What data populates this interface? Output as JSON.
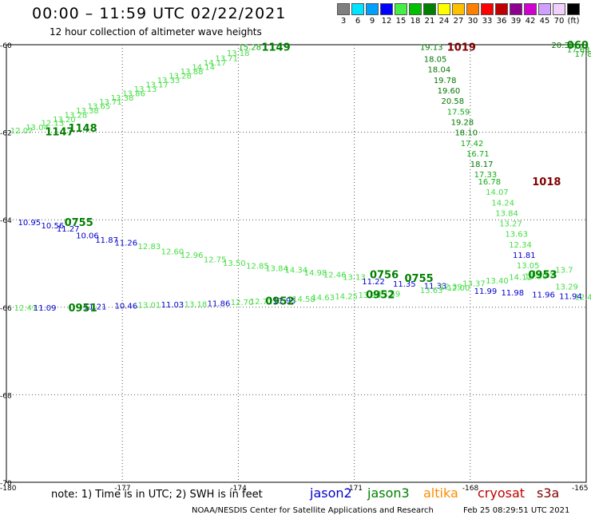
{
  "header": {
    "title": "00:00 – 11:59 UTC 02/22/2021",
    "subtitle": "12 hour collection of altimeter wave heights"
  },
  "legend": {
    "swatches": [
      {
        "color": "#7f7f7f",
        "label": "3"
      },
      {
        "color": "#00e5ff",
        "label": "6"
      },
      {
        "color": "#00a0ff",
        "label": "9"
      },
      {
        "color": "#0000ff",
        "label": "12"
      },
      {
        "color": "#44ee44",
        "label": "15"
      },
      {
        "color": "#00c000",
        "label": "18"
      },
      {
        "color": "#008000",
        "label": "21"
      },
      {
        "color": "#ffff00",
        "label": "24"
      },
      {
        "color": "#ffc000",
        "label": "27"
      },
      {
        "color": "#ff8000",
        "label": "30"
      },
      {
        "color": "#ff0000",
        "label": "33"
      },
      {
        "color": "#c00000",
        "label": "36"
      },
      {
        "color": "#900090",
        "label": "39"
      },
      {
        "color": "#d000d0",
        "label": "42"
      },
      {
        "color": "#d0a0ff",
        "label": "45"
      },
      {
        "color": "#f0d0ff",
        "label": "70"
      },
      {
        "color": "#000000",
        "label": "(ft)"
      }
    ]
  },
  "axes": {
    "lat_labels": [
      "-60",
      "-62",
      "-64",
      "-66",
      "-68",
      "-70"
    ],
    "lon_labels": [
      "-180",
      "-177",
      "-174",
      "-171",
      "-168",
      "-165"
    ],
    "lat_range": [
      -70,
      -60
    ],
    "lon_range": [
      -180,
      -165
    ]
  },
  "tracks": {
    "track_1149": [
      {
        "lat": -61.95,
        "lon": -179.9,
        "v": "12.07"
      },
      {
        "lat": -61.88,
        "lon": -179.5,
        "v": "13.04"
      },
      {
        "lat": -61.78,
        "lon": -179.1,
        "v": "12.13"
      },
      {
        "lat": -61.7,
        "lon": -178.8,
        "v": "13.20"
      },
      {
        "lat": -61.6,
        "lon": -178.5,
        "v": "13.28"
      },
      {
        "lat": -61.5,
        "lon": -178.2,
        "v": "13.38"
      },
      {
        "lat": -61.4,
        "lon": -177.9,
        "v": "13.65"
      },
      {
        "lat": -61.3,
        "lon": -177.6,
        "v": "13.71"
      },
      {
        "lat": -61.2,
        "lon": -177.3,
        "v": "13.38"
      },
      {
        "lat": -61.1,
        "lon": -177.0,
        "v": "13.86"
      },
      {
        "lat": -61.0,
        "lon": -176.7,
        "v": "13.13"
      },
      {
        "lat": -60.9,
        "lon": -176.4,
        "v": "13.17"
      },
      {
        "lat": -60.8,
        "lon": -176.1,
        "v": "13.33"
      },
      {
        "lat": -60.7,
        "lon": -175.8,
        "v": "13.28"
      },
      {
        "lat": -60.6,
        "lon": -175.5,
        "v": "13.88"
      },
      {
        "lat": -60.5,
        "lon": -175.2,
        "v": "14.14"
      },
      {
        "lat": -60.4,
        "lon": -174.9,
        "v": "14.17"
      },
      {
        "lat": -60.3,
        "lon": -174.6,
        "v": "13.71"
      },
      {
        "lat": -60.18,
        "lon": -174.3,
        "v": "13.18"
      },
      {
        "lat": -60.05,
        "lon": -174.0,
        "v": "15.28"
      }
    ],
    "track_1019": [
      {
        "lat": -60.05,
        "lon": -169.3,
        "v": "19.13"
      },
      {
        "lat": -60.32,
        "lon": -169.2,
        "v": "18.05"
      },
      {
        "lat": -60.56,
        "lon": -169.1,
        "v": "18.04"
      },
      {
        "lat": -60.8,
        "lon": -168.95,
        "v": "19.78"
      },
      {
        "lat": -61.04,
        "lon": -168.85,
        "v": "19.60"
      },
      {
        "lat": -61.28,
        "lon": -168.75,
        "v": "20.58"
      },
      {
        "lat": -61.52,
        "lon": -168.6,
        "v": "17.59"
      },
      {
        "lat": -61.76,
        "lon": -168.5,
        "v": "19.28"
      },
      {
        "lat": -62.0,
        "lon": -168.4,
        "v": "18.10"
      },
      {
        "lat": -62.24,
        "lon": -168.25,
        "v": "17.42"
      },
      {
        "lat": -62.48,
        "lon": -168.1,
        "v": "16.71"
      },
      {
        "lat": -62.72,
        "lon": -168.0,
        "v": "18.17"
      },
      {
        "lat": -62.96,
        "lon": -167.9,
        "v": "17.33"
      },
      {
        "lat": -63.12,
        "lon": -167.8,
        "v": "16.78"
      }
    ],
    "track_1018": [
      {
        "lat": -63.36,
        "lon": -167.6,
        "v": "14.07"
      },
      {
        "lat": -63.6,
        "lon": -167.45,
        "v": "14.24"
      },
      {
        "lat": -63.84,
        "lon": -167.35,
        "v": "13.84"
      },
      {
        "lat": -64.08,
        "lon": -167.25,
        "v": "13.27"
      },
      {
        "lat": -64.32,
        "lon": -167.1,
        "v": "13.63"
      },
      {
        "lat": -64.56,
        "lon": -167.0,
        "v": "12.34"
      },
      {
        "lat": -64.8,
        "lon": -166.9,
        "v": "11.81"
      },
      {
        "lat": -65.04,
        "lon": -166.8,
        "v": "13.05"
      },
      {
        "lat": -65.28,
        "lon": -166.6,
        "v": "13.30"
      },
      {
        "lat": -65.52,
        "lon": -165.8,
        "v": "13.29"
      },
      {
        "lat": -65.76,
        "lon": -165.3,
        "v": "12.4"
      }
    ],
    "track_0755": [
      {
        "lat": -64.05,
        "lon": -179.7,
        "v": "10.95"
      },
      {
        "lat": -64.12,
        "lon": -179.1,
        "v": "10.56"
      },
      {
        "lat": -64.2,
        "lon": -178.7,
        "v": "11.27"
      },
      {
        "lat": -64.35,
        "lon": -178.2,
        "v": "10.06"
      },
      {
        "lat": -64.45,
        "lon": -177.7,
        "v": "11.87"
      },
      {
        "lat": -64.52,
        "lon": -177.2,
        "v": "11.26"
      },
      {
        "lat": -64.6,
        "lon": -176.6,
        "v": "12.83"
      },
      {
        "lat": -64.72,
        "lon": -176.0,
        "v": "12.60"
      },
      {
        "lat": -64.8,
        "lon": -175.5,
        "v": "12.96"
      },
      {
        "lat": -64.9,
        "lon": -174.9,
        "v": "12.75"
      },
      {
        "lat": -64.98,
        "lon": -174.4,
        "v": "13.50"
      },
      {
        "lat": -65.05,
        "lon": -173.8,
        "v": "12.85"
      },
      {
        "lat": -65.1,
        "lon": -173.3,
        "v": "13.84"
      },
      {
        "lat": -65.14,
        "lon": -172.8,
        "v": "14.34"
      },
      {
        "lat": -65.2,
        "lon": -172.3,
        "v": "14.98"
      },
      {
        "lat": -65.25,
        "lon": -171.8,
        "v": "12.46"
      },
      {
        "lat": -65.3,
        "lon": -171.3,
        "v": "13.13"
      },
      {
        "lat": -65.4,
        "lon": -170.8,
        "v": "11.22"
      },
      {
        "lat": -65.46,
        "lon": -170.0,
        "v": "11.35"
      },
      {
        "lat": -65.5,
        "lon": -169.2,
        "v": "11.33"
      },
      {
        "lat": -65.55,
        "lon": -168.6,
        "v": "12.00"
      },
      {
        "lat": -65.62,
        "lon": -167.9,
        "v": "11.99"
      },
      {
        "lat": -65.66,
        "lon": -167.2,
        "v": "11.98"
      },
      {
        "lat": -65.7,
        "lon": -166.4,
        "v": "11.96"
      },
      {
        "lat": -65.74,
        "lon": -165.7,
        "v": "11.94"
      }
    ],
    "track_0951": [
      {
        "lat": -66.0,
        "lon": -179.8,
        "v": "12.41"
      },
      {
        "lat": -66.0,
        "lon": -179.3,
        "v": "11.09"
      },
      {
        "lat": -65.98,
        "lon": -178.0,
        "v": "11.21"
      },
      {
        "lat": -65.96,
        "lon": -177.2,
        "v": "10.46"
      },
      {
        "lat": -65.94,
        "lon": -176.6,
        "v": "13.01"
      },
      {
        "lat": -65.93,
        "lon": -176.0,
        "v": "11.03"
      },
      {
        "lat": -65.92,
        "lon": -175.4,
        "v": "13.18"
      },
      {
        "lat": -65.9,
        "lon": -174.8,
        "v": "11.86"
      },
      {
        "lat": -65.88,
        "lon": -174.2,
        "v": "12.70"
      },
      {
        "lat": -65.86,
        "lon": -173.7,
        "v": "12.71"
      },
      {
        "lat": -65.84,
        "lon": -173.1,
        "v": "11.95"
      },
      {
        "lat": -65.8,
        "lon": -172.6,
        "v": "14.58"
      },
      {
        "lat": -65.77,
        "lon": -172.1,
        "v": "14.63"
      },
      {
        "lat": -65.74,
        "lon": -171.5,
        "v": "14.25"
      },
      {
        "lat": -65.71,
        "lon": -170.9,
        "v": "13.90"
      },
      {
        "lat": -65.68,
        "lon": -170.4,
        "v": "13.59"
      },
      {
        "lat": -65.6,
        "lon": -169.3,
        "v": "13.63"
      },
      {
        "lat": -65.52,
        "lon": -168.8,
        "v": "12.39"
      },
      {
        "lat": -65.45,
        "lon": -168.2,
        "v": "13.37"
      },
      {
        "lat": -65.38,
        "lon": -167.6,
        "v": "13.40"
      },
      {
        "lat": -65.3,
        "lon": -167.0,
        "v": "14.11"
      },
      {
        "lat": -65.22,
        "lon": -166.4,
        "v": "13.59"
      },
      {
        "lat": -65.14,
        "lon": -165.8,
        "v": "13.7"
      }
    ],
    "track_0600": [
      {
        "lat": -60.0,
        "lon": -165.9,
        "v": "20.30"
      },
      {
        "lat": -60.1,
        "lon": -165.5,
        "v": "17.63"
      },
      {
        "lat": -60.2,
        "lon": -165.3,
        "v": "17.84"
      }
    ]
  },
  "pass_labels": [
    {
      "text": "1149",
      "lat": -60.05,
      "lon": -173.4,
      "color": "#008000"
    },
    {
      "text": "1148",
      "lat": -61.9,
      "lon": -178.4,
      "color": "#008000"
    },
    {
      "text": "1147",
      "lat": -61.98,
      "lon": -179.0,
      "color": "#008000"
    },
    {
      "text": "1019",
      "lat": -60.05,
      "lon": -168.6,
      "color": "#800000"
    },
    {
      "text": "1018",
      "lat": -63.12,
      "lon": -166.4,
      "color": "#800000"
    },
    {
      "text": "0755",
      "lat": -64.05,
      "lon": -178.5,
      "color": "#008000"
    },
    {
      "text": "0756",
      "lat": -65.25,
      "lon": -170.6,
      "color": "#008000"
    },
    {
      "text": "0755",
      "lat": -65.33,
      "lon": -169.7,
      "color": "#008000"
    },
    {
      "text": "0952",
      "lat": -65.7,
      "lon": -170.7,
      "color": "#008000"
    },
    {
      "text": "0952",
      "lat": -65.85,
      "lon": -173.3,
      "color": "#008000"
    },
    {
      "text": "0951",
      "lat": -66.0,
      "lon": -178.4,
      "color": "#008000"
    },
    {
      "text": "0953",
      "lat": -65.25,
      "lon": -166.5,
      "color": "#008000"
    },
    {
      "text": "060",
      "lat": -60.0,
      "lon": -165.5,
      "color": "#008000"
    }
  ],
  "footer": {
    "note": "note: 1) Time is in UTC; 2) SWH is in feet",
    "satellites": [
      {
        "name": "jason2",
        "color": "#0000cc"
      },
      {
        "name": "jason3",
        "color": "#008000"
      },
      {
        "name": "altika",
        "color": "#ff8c00"
      },
      {
        "name": "cryosat",
        "color": "#c00000"
      },
      {
        "name": "s3a",
        "color": "#800000"
      }
    ],
    "credit": "NOAA/NESDIS Center for Satellite Applications and Research",
    "timestamp": "Feb 25 08:29:51 UTC 2021"
  }
}
